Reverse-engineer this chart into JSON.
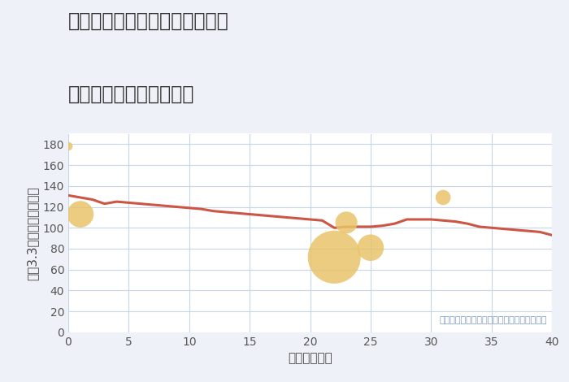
{
  "title_line1": "愛知県名古屋市中村区名楽町の",
  "title_line2": "築年数別中古戸建て価格",
  "xlabel": "築年数（年）",
  "ylabel": "坪（3.3㎡）単価（万円）",
  "annotation": "円の大きさは、取引のあった物件面積を示す",
  "background_color": "#eef2f8",
  "plot_bg_color": "#ffffff",
  "line_color": "#cc5544",
  "line_x": [
    0,
    1,
    2,
    3,
    4,
    5,
    6,
    7,
    8,
    9,
    10,
    11,
    12,
    13,
    14,
    15,
    16,
    17,
    18,
    19,
    20,
    21,
    22,
    23,
    24,
    25,
    26,
    27,
    28,
    29,
    30,
    31,
    32,
    33,
    34,
    35,
    36,
    37,
    38,
    39,
    40
  ],
  "line_y": [
    131,
    129,
    127,
    123,
    125,
    124,
    123,
    122,
    121,
    120,
    119,
    118,
    116,
    115,
    114,
    113,
    112,
    111,
    110,
    109,
    108,
    107,
    100,
    101,
    101,
    101,
    102,
    104,
    108,
    108,
    108,
    107,
    106,
    104,
    101,
    100,
    99,
    98,
    97,
    96,
    93
  ],
  "scatter_x": [
    1,
    22,
    23,
    25,
    31
  ],
  "scatter_y": [
    113,
    72,
    105,
    81,
    129
  ],
  "scatter_size": [
    550,
    2200,
    380,
    550,
    180
  ],
  "scatter_color": "#e8c46a",
  "scatter_alpha": 0.85,
  "top_dot_x": 0,
  "top_dot_y": 178,
  "top_dot_size": 60,
  "xlim": [
    0,
    40
  ],
  "ylim": [
    0,
    190
  ],
  "yticks": [
    0,
    20,
    40,
    60,
    80,
    100,
    120,
    140,
    160,
    180
  ],
  "xticks": [
    0,
    5,
    10,
    15,
    20,
    25,
    30,
    35,
    40
  ],
  "title_color": "#333333",
  "title_fontsize": 17,
  "label_fontsize": 11,
  "tick_fontsize": 10,
  "grid_color": "#c8d4e8",
  "line_width": 2.2
}
